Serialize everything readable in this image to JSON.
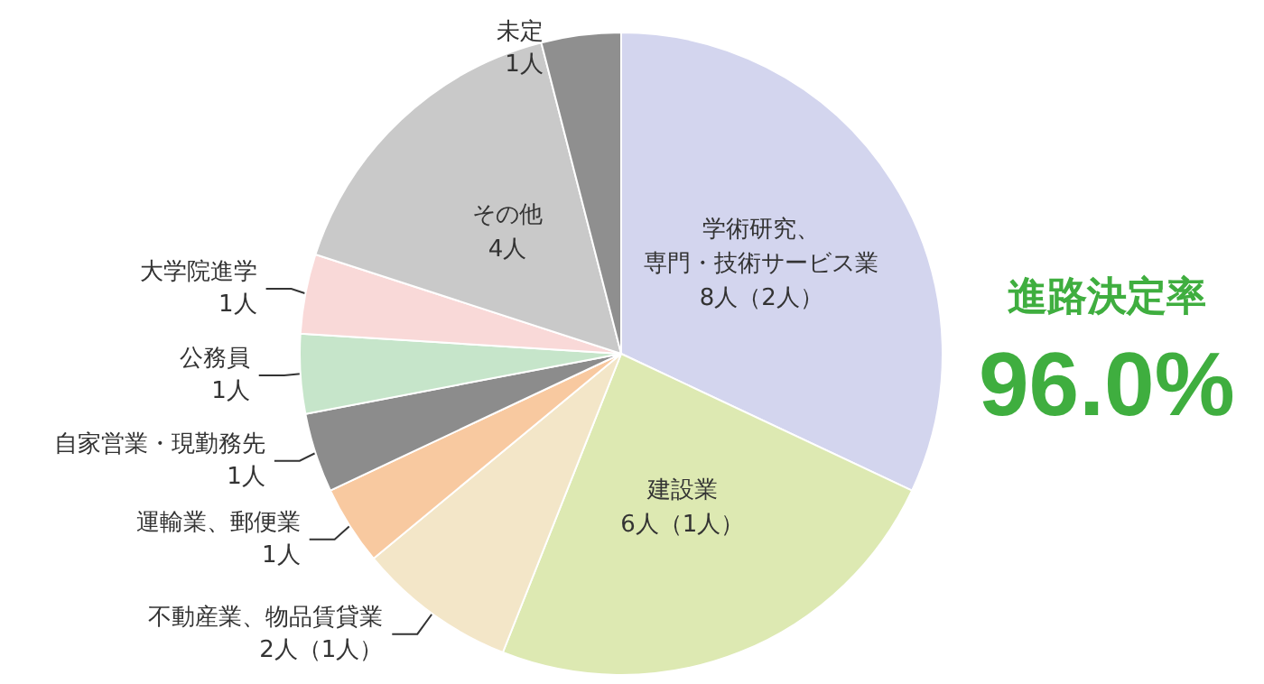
{
  "chart_data": {
    "type": "pie",
    "title": "進路決定率",
    "annotations": [
      "96.0%"
    ],
    "categories": [
      "学術研究、専門・技術サービス業",
      "建設業",
      "不動産業、物品賃貸業",
      "運輸業、郵便業",
      "自家営業・現勤務先",
      "公務員",
      "大学院進学",
      "その他",
      "未定"
    ],
    "values": [
      8,
      6,
      2,
      1,
      1,
      1,
      1,
      4,
      1
    ],
    "value_labels": [
      "8人（2人）",
      "6人（1人）",
      "2人（1人）",
      "1人",
      "1人",
      "1人",
      "1人",
      "4人",
      "1人"
    ],
    "colors": [
      "#d3d5ee",
      "#dde9b2",
      "#f3e6c8",
      "#f8c9a0",
      "#8c8c8c",
      "#c6e5ca",
      "#f9d9d8",
      "#c9c9c9",
      "#8f8f8f"
    ],
    "legend": false
  }
}
